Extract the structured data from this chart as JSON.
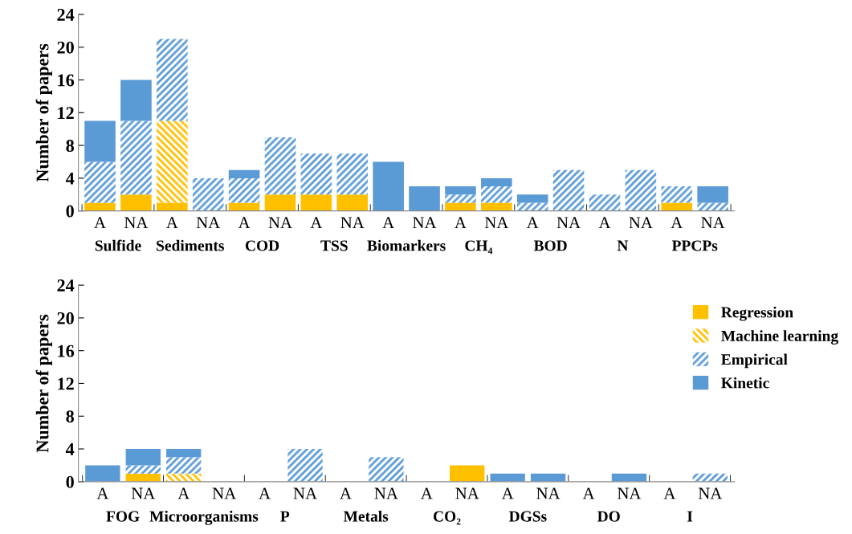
{
  "chart_data": [
    {
      "type": "bar",
      "stacked": true,
      "ylabel": "Number of papers",
      "ylim": [
        0,
        24
      ],
      "yticks": [
        0,
        4,
        8,
        12,
        16,
        20,
        24
      ],
      "grid": false,
      "categories": [
        "A",
        "NA",
        "A",
        "NA",
        "A",
        "NA",
        "A",
        "NA",
        "A",
        "NA",
        "A",
        "NA",
        "A",
        "NA",
        "A",
        "NA",
        "A",
        "NA"
      ],
      "annotations": [
        "Sulfide",
        "Sediments",
        "COD",
        "TSS",
        "Biomarkers",
        "CH₄",
        "BOD",
        "N",
        "PPCPs"
      ],
      "series": [
        {
          "color": "#ffc000",
          "values": [
            1,
            2,
            1,
            0,
            1,
            2,
            2,
            2,
            0,
            0,
            1,
            1,
            0,
            0,
            0,
            0,
            1,
            0
          ]
        },
        {
          "color": "#ffc000",
          "values": [
            0,
            0,
            10,
            0,
            0,
            0,
            0,
            0,
            0,
            0,
            0,
            0,
            0,
            0,
            0,
            0,
            0,
            0
          ]
        },
        {
          "color": "#5b9bd5",
          "values": [
            5,
            9,
            10,
            4,
            3,
            7,
            5,
            5,
            0,
            0,
            1,
            2,
            1,
            5,
            2,
            5,
            2,
            1
          ]
        },
        {
          "color": "#5b9bd5",
          "values": [
            5,
            5,
            0,
            0,
            1,
            0,
            0,
            0,
            6,
            3,
            1,
            1,
            1,
            0,
            0,
            0,
            0,
            2
          ]
        }
      ]
    },
    {
      "type": "bar",
      "stacked": true,
      "ylabel": "Number of papers",
      "ylim": [
        0,
        24
      ],
      "yticks": [
        0,
        4,
        8,
        12,
        16,
        20,
        24
      ],
      "grid": false,
      "legend": "top right",
      "categories": [
        "A",
        "NA",
        "A",
        "NA",
        "A",
        "NA",
        "A",
        "NA",
        "A",
        "NA",
        "A",
        "NA",
        "A",
        "NA",
        "A",
        "NA"
      ],
      "annotations": [
        "FOG",
        "Microorganisms",
        "P",
        "Metals",
        "CO₂",
        "DGSs",
        "DO",
        "I"
      ],
      "series": [
        {
          "name": "Regression",
          "color": "#ffc000",
          "values": [
            0,
            1,
            0,
            0,
            0,
            0,
            0,
            0,
            0,
            2,
            0,
            0,
            0,
            0,
            0,
            0
          ]
        },
        {
          "name": "Machine learning",
          "color": "#ffc000",
          "values": [
            0,
            0,
            1,
            0,
            0,
            0,
            0,
            0,
            0,
            0,
            0,
            0,
            0,
            0,
            0,
            0
          ]
        },
        {
          "name": "Empirical",
          "color": "#5b9bd5",
          "values": [
            0,
            1,
            2,
            0,
            0,
            4,
            0,
            3,
            0,
            0,
            0,
            0,
            0,
            0,
            0,
            1
          ]
        },
        {
          "name": "Kinetic",
          "color": "#5b9bd5",
          "values": [
            2,
            2,
            1,
            0,
            0,
            0,
            0,
            0,
            0,
            0,
            1,
            1,
            0,
            1,
            0,
            0
          ]
        }
      ]
    }
  ]
}
